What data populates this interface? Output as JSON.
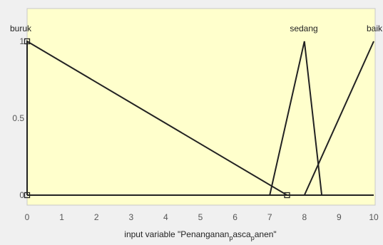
{
  "chart_data": {
    "type": "line",
    "title": "",
    "xlabel": {
      "parts": [
        {
          "text": "input variable \"Penanganan",
          "sub": false
        },
        {
          "text": "p",
          "sub": true
        },
        {
          "text": "asca",
          "sub": false
        },
        {
          "text": "p",
          "sub": true
        },
        {
          "text": "anen\"",
          "sub": false
        }
      ]
    },
    "ylabel": "",
    "xlim": [
      0,
      10
    ],
    "ylim": [
      0,
      1
    ],
    "xticks": [
      0,
      1,
      2,
      3,
      4,
      5,
      6,
      7,
      8,
      9,
      10
    ],
    "xtick_labels": [
      "0",
      "1",
      "2",
      "3",
      "4",
      "5",
      "6",
      "7",
      "8",
      "9",
      "10"
    ],
    "yticks": [
      0,
      0.5,
      1
    ],
    "ytick_labels": [
      "0",
      "0.5",
      "1"
    ],
    "grid": false,
    "series": [
      {
        "name": "buruk",
        "x": [
          0,
          0,
          7.5
        ],
        "y": [
          0,
          1,
          0
        ]
      },
      {
        "name": "sedang",
        "x": [
          7,
          8,
          8.5
        ],
        "y": [
          0,
          1,
          0
        ]
      },
      {
        "name": "baik",
        "x": [
          8,
          10,
          10
        ],
        "y": [
          0,
          1,
          1
        ]
      }
    ],
    "selected_markers": [
      {
        "x": 0,
        "y": 1
      },
      {
        "x": 0,
        "y": 0
      },
      {
        "x": 7.5,
        "y": 0
      }
    ],
    "colors": {
      "plot_background": "#ffffcc",
      "figure_background": "#f0f0f0",
      "line": "#222222",
      "axes": "#c8c8c8"
    }
  }
}
